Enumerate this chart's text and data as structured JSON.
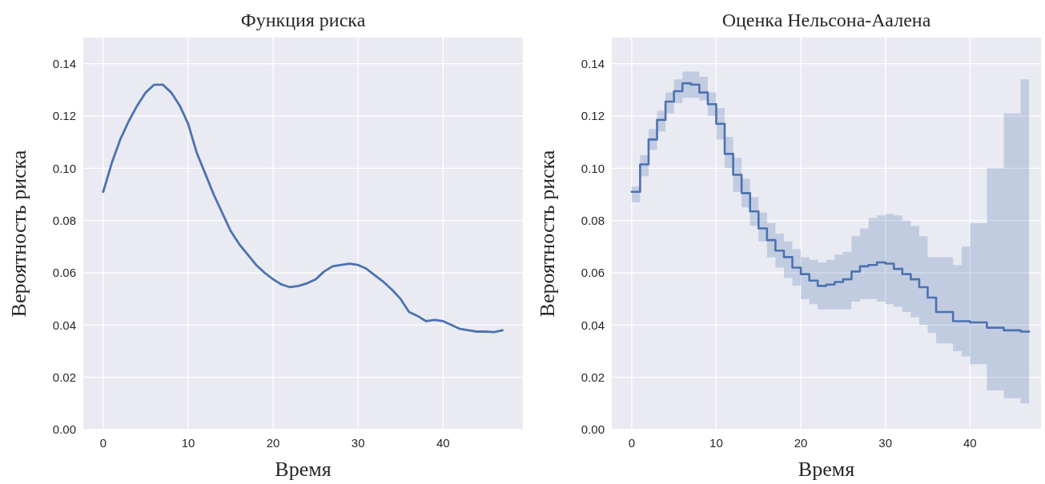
{
  "chart_data": [
    {
      "type": "line",
      "title": "Функция риска",
      "xlabel": "Время",
      "ylabel": "Вероятность риска",
      "x": [
        0,
        1,
        2,
        3,
        4,
        5,
        6,
        7,
        8,
        9,
        10,
        11,
        12,
        13,
        14,
        15,
        16,
        17,
        18,
        19,
        20,
        21,
        22,
        23,
        24,
        25,
        26,
        27,
        28,
        29,
        30,
        31,
        32,
        33,
        34,
        35,
        36,
        37,
        38,
        39,
        40,
        41,
        42,
        43,
        44,
        45,
        46,
        47
      ],
      "series": [
        {
          "color": "#4c72b0",
          "values": [
            0.091,
            0.102,
            0.111,
            0.118,
            0.124,
            0.129,
            0.132,
            0.132,
            0.129,
            0.124,
            0.117,
            0.106,
            0.098,
            0.09,
            0.083,
            0.076,
            0.071,
            0.067,
            0.063,
            0.06,
            0.0575,
            0.0555,
            0.0545,
            0.055,
            0.056,
            0.0575,
            0.0605,
            0.0625,
            0.063,
            0.0635,
            0.063,
            0.0615,
            0.059,
            0.0565,
            0.0535,
            0.05,
            0.045,
            0.0435,
            0.0415,
            0.042,
            0.0415,
            0.04,
            0.0385,
            0.038,
            0.0375,
            0.0375,
            0.0373,
            0.038
          ]
        }
      ],
      "xlim": [
        -2.35,
        49.4
      ],
      "xticks": [
        0,
        10,
        20,
        30,
        40
      ],
      "ylim": [
        0,
        0.15
      ],
      "yticks": [
        {
          "value": 0,
          "label": "0.00"
        },
        {
          "value": 0.02,
          "label": "0.02"
        },
        {
          "value": 0.04,
          "label": "0.04"
        },
        {
          "value": 0.06,
          "label": "0.06"
        },
        {
          "value": 0.08,
          "label": "0.08"
        },
        {
          "value": 0.1,
          "label": "0.10"
        },
        {
          "value": 0.12,
          "label": "0.12"
        },
        {
          "value": 0.14,
          "label": "0.14"
        }
      ],
      "grid": true
    },
    {
      "type": "step",
      "title": "Оценка Нельсона-Аалена",
      "xlabel": "Время",
      "ylabel": "Вероятность риска",
      "x": [
        0,
        1,
        2,
        3,
        4,
        5,
        6,
        7,
        8,
        9,
        10,
        11,
        12,
        13,
        14,
        15,
        16,
        17,
        18,
        19,
        20,
        21,
        22,
        23,
        24,
        25,
        26,
        27,
        28,
        29,
        30,
        31,
        32,
        33,
        34,
        35,
        36,
        37,
        38,
        39,
        40,
        41,
        42,
        43,
        44,
        45,
        46,
        47
      ],
      "series": [
        {
          "color": "#4c72b0",
          "values": [
            0.091,
            0.1015,
            0.111,
            0.1185,
            0.1255,
            0.1295,
            0.1325,
            0.132,
            0.129,
            0.1245,
            0.117,
            0.1055,
            0.0975,
            0.0905,
            0.0835,
            0.077,
            0.0725,
            0.0685,
            0.066,
            0.062,
            0.0595,
            0.057,
            0.055,
            0.0555,
            0.0565,
            0.0575,
            0.0605,
            0.0625,
            0.063,
            0.064,
            0.0635,
            0.0615,
            0.0595,
            0.0575,
            0.0545,
            0.0505,
            0.045,
            0.045,
            0.0415,
            0.0415,
            0.041,
            0.041,
            0.039,
            0.039,
            0.038,
            0.038,
            0.0375,
            0.0375
          ],
          "upper": [
            0.093,
            0.105,
            0.115,
            0.122,
            0.129,
            0.134,
            0.137,
            0.137,
            0.135,
            0.129,
            0.123,
            0.112,
            0.104,
            0.096,
            0.089,
            0.083,
            0.079,
            0.075,
            0.072,
            0.069,
            0.066,
            0.065,
            0.064,
            0.065,
            0.067,
            0.068,
            0.074,
            0.077,
            0.081,
            0.082,
            0.0825,
            0.082,
            0.08,
            0.078,
            0.074,
            0.066,
            0.066,
            0.066,
            0.063,
            0.07,
            0.079,
            0.079,
            0.1,
            0.1,
            0.121,
            0.121,
            0.134,
            0.134
          ],
          "lower": [
            0.087,
            0.097,
            0.107,
            0.114,
            0.121,
            0.125,
            0.127,
            0.127,
            0.126,
            0.12,
            0.111,
            0.1,
            0.091,
            0.085,
            0.078,
            0.072,
            0.066,
            0.062,
            0.058,
            0.055,
            0.05,
            0.048,
            0.046,
            0.046,
            0.046,
            0.046,
            0.049,
            0.05,
            0.05,
            0.049,
            0.048,
            0.047,
            0.045,
            0.043,
            0.04,
            0.037,
            0.033,
            0.033,
            0.03,
            0.028,
            0.025,
            0.025,
            0.015,
            0.015,
            0.012,
            0.012,
            0.01,
            0.01
          ]
        }
      ],
      "xlim": [
        -2.35,
        48.4
      ],
      "xticks": [
        0,
        10,
        20,
        30,
        40
      ],
      "ylim": [
        0,
        0.15
      ],
      "yticks": [
        {
          "value": 0,
          "label": "0.00"
        },
        {
          "value": 0.02,
          "label": "0.02"
        },
        {
          "value": 0.04,
          "label": "0.04"
        },
        {
          "value": 0.06,
          "label": "0.06"
        },
        {
          "value": 0.08,
          "label": "0.08"
        },
        {
          "value": 0.1,
          "label": "0.10"
        },
        {
          "value": 0.12,
          "label": "0.12"
        },
        {
          "value": 0.14,
          "label": "0.14"
        }
      ],
      "grid": true
    }
  ]
}
